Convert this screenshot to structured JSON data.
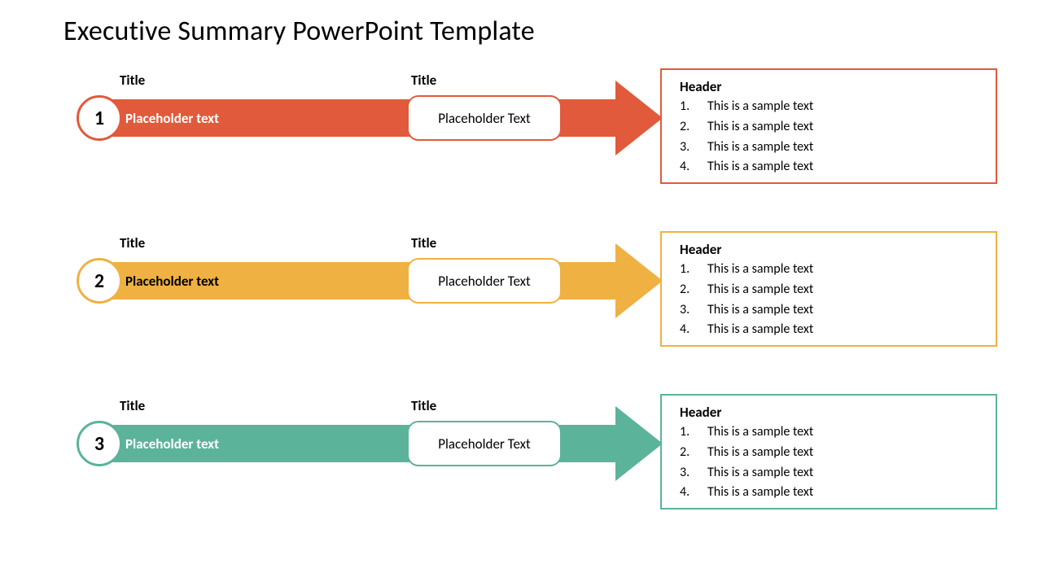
{
  "slide": {
    "title": "Executive Summary PowerPoint Template",
    "background_color": "#ffffff",
    "title_color": "#000000",
    "title_fontsize": 34
  },
  "columns": {
    "left_label": "Title",
    "mid_label": "Title"
  },
  "rows": [
    {
      "number": "1",
      "color": "#e15a3b",
      "text_on_shaft_color": "#ffffff",
      "placeholder_left": "Placeholder text",
      "placeholder_mid": "Placeholder Text",
      "box": {
        "header": "Header",
        "items": [
          "This is a sample text",
          "This is a sample text",
          "This is a sample text",
          "This is a sample text"
        ]
      }
    },
    {
      "number": "2",
      "color": "#efb142",
      "text_on_shaft_color": "#000000",
      "placeholder_left": "Placeholder text",
      "placeholder_mid": "Placeholder Text",
      "box": {
        "header": "Header",
        "items": [
          "This is a sample text",
          "This is a sample text",
          "This is a sample text",
          "This is a sample text"
        ]
      }
    },
    {
      "number": "3",
      "color": "#5bb39a",
      "text_on_shaft_color": "#ffffff",
      "placeholder_left": "Placeholder text",
      "placeholder_mid": "Placeholder Text",
      "box": {
        "header": "Header",
        "items": [
          "This is a sample text",
          "This is a sample text",
          "This is a sample text",
          "This is a sample text"
        ]
      }
    }
  ],
  "style": {
    "type": "infographic",
    "arrow_shaft_height": 46,
    "arrow_shaft_width": 680,
    "arrow_head_width": 58,
    "arrow_head_height": 92,
    "number_circle_diameter": 56,
    "mid_box_width": 190,
    "mid_box_height": 56,
    "mid_box_radius": 14,
    "right_box_width": 414,
    "right_box_height": 142,
    "row_spacing": 200,
    "label_fontsize": 17,
    "body_fontsize": 16,
    "number_fontsize": 24
  }
}
